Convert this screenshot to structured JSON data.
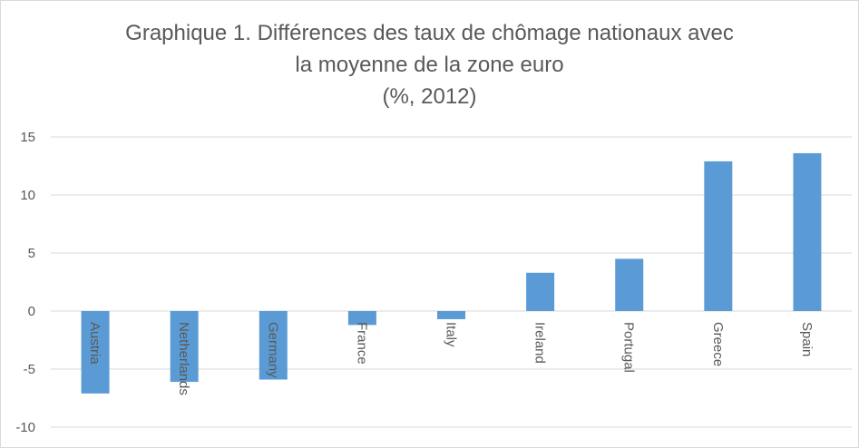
{
  "chart_data": {
    "type": "bar",
    "title_lines": [
      "Graphique 1. Différences des taux de chômage nationaux avec",
      "la moyenne de la zone euro",
      "(%, 2012)"
    ],
    "categories": [
      "Austria",
      "Netherlands",
      "Germany",
      "France",
      "Italy",
      "Ireland",
      "Portugal",
      "Greece",
      "Spain"
    ],
    "values": [
      -7.1,
      -6.1,
      -5.9,
      -1.2,
      -0.7,
      3.3,
      4.5,
      12.9,
      13.6
    ],
    "ylim": [
      -10,
      15
    ],
    "yticks": [
      15,
      10,
      5,
      0,
      -5,
      -10
    ],
    "grid": true,
    "legend": "none",
    "bar_color": "#5b9bd5",
    "grid_color": "#d9d9d9"
  }
}
